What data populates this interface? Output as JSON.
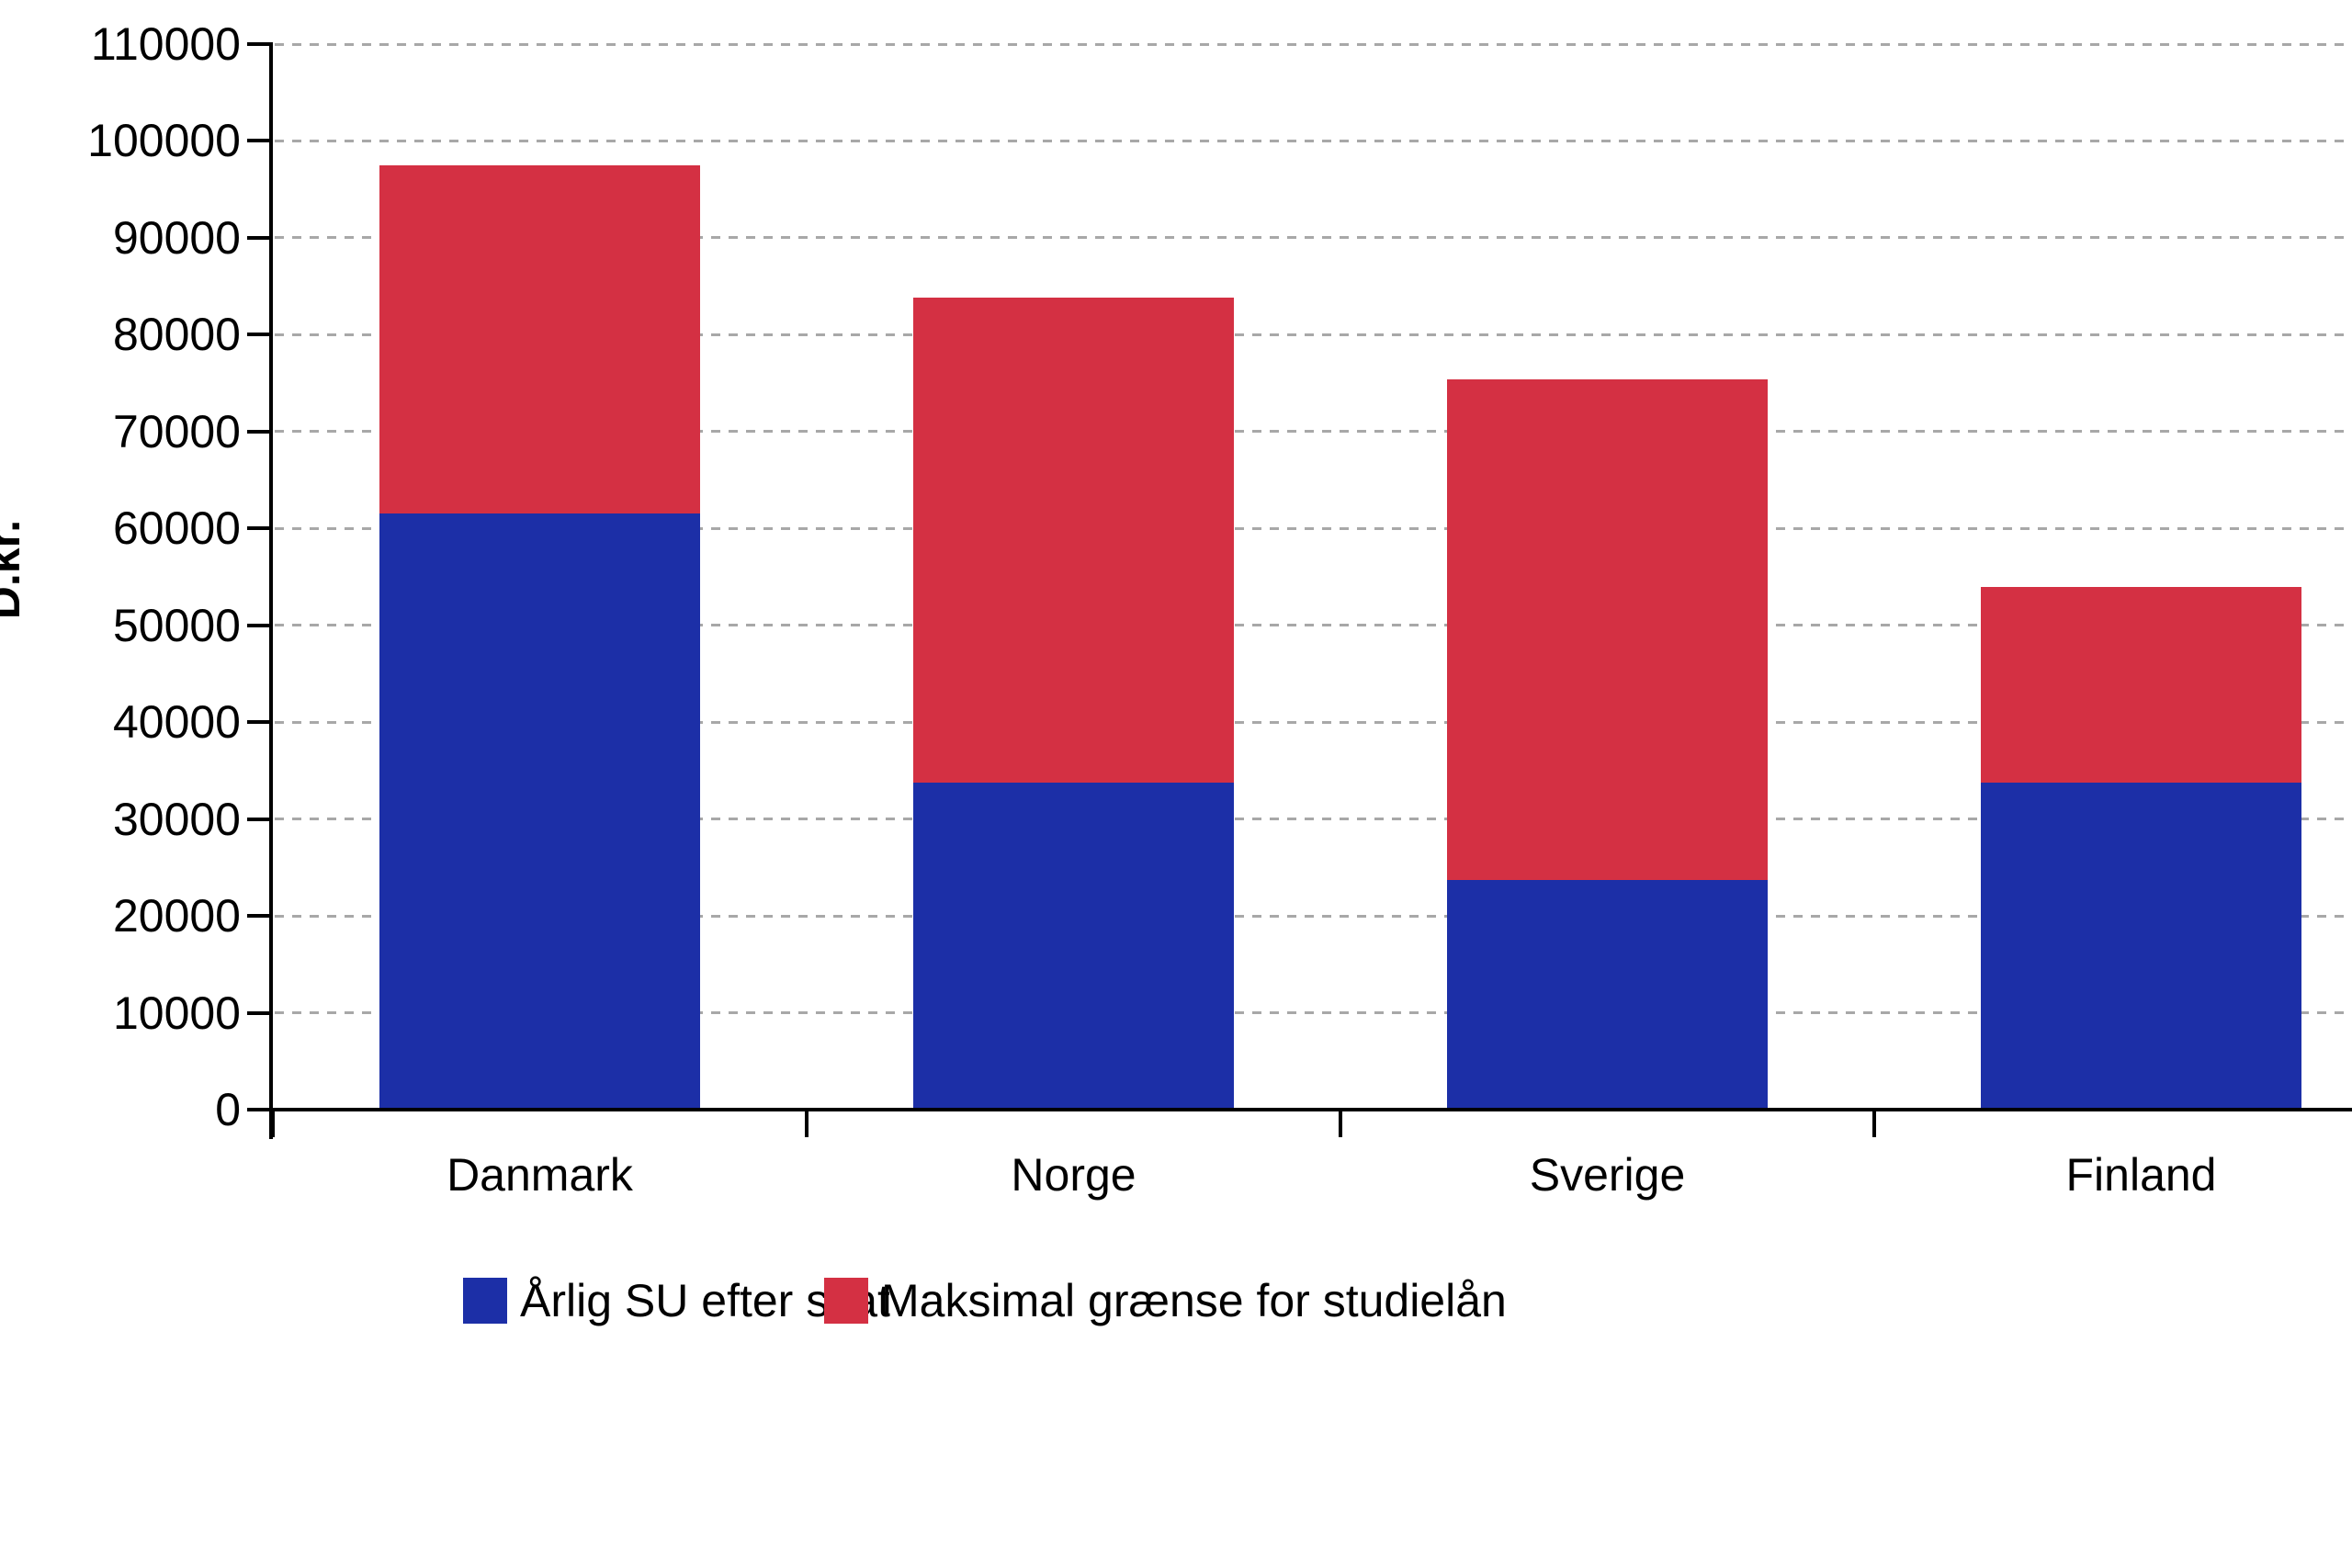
{
  "chart_data": {
    "type": "bar",
    "stacked": true,
    "title": "",
    "xlabel": "",
    "ylabel": "D.kr.",
    "categories": [
      "Danmark",
      "Norge",
      "Sverige",
      "Finland"
    ],
    "series": [
      {
        "name": "Årlig SU efter skat",
        "color": "#1c2fa7",
        "values": [
          61500,
          33800,
          23700,
          33800
        ]
      },
      {
        "name": "Maksimal grænse for studielån",
        "color": "#d43043",
        "values": [
          36000,
          50000,
          51700,
          20200
        ]
      }
    ],
    "totals": [
      97500,
      83800,
      75400,
      54000
    ],
    "ylim": [
      0,
      110000
    ],
    "yticks": [
      0,
      10000,
      20000,
      30000,
      40000,
      50000,
      60000,
      70000,
      80000,
      90000,
      100000,
      110000
    ],
    "grid": "horizontal-dashed",
    "gridline_color": "#a8a8a8",
    "axis_color": "#000000",
    "legend_position": "bottom"
  }
}
